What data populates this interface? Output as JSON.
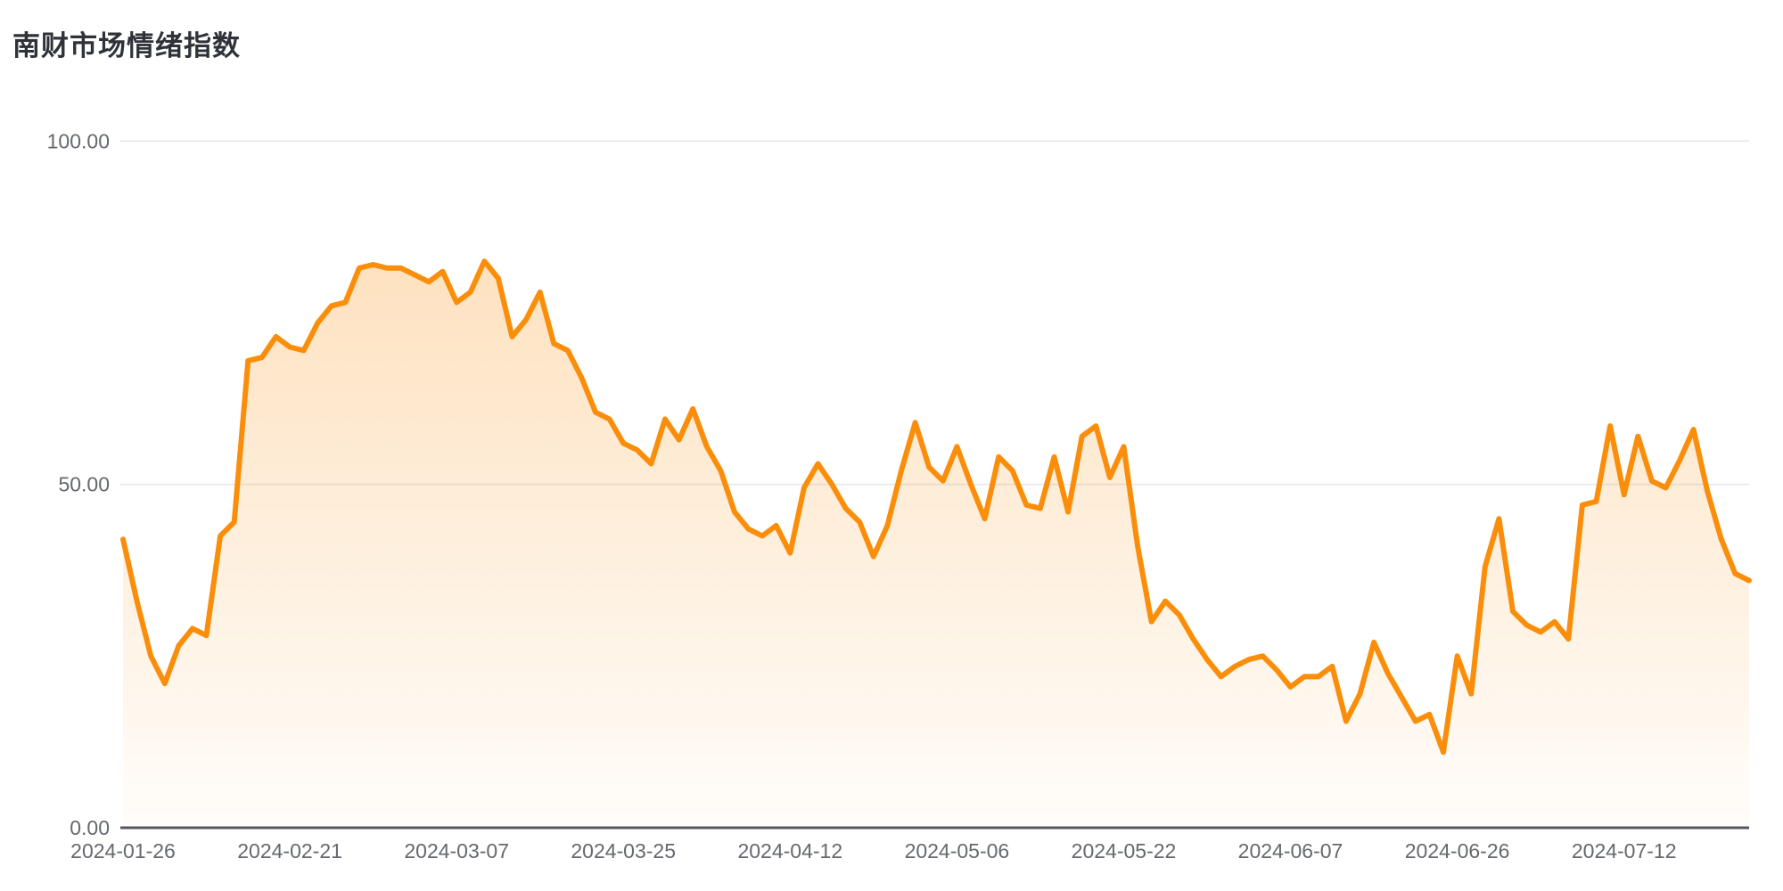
{
  "title": "南财市场情绪指数",
  "chart_data": {
    "type": "area",
    "title": "南财市场情绪指数",
    "xlabel": "",
    "ylabel": "",
    "ylim": [
      0,
      100
    ],
    "grid": {
      "horizontal": true,
      "vertical": false
    },
    "legend": "none",
    "x_axis_type": "category-dates",
    "x_tick_labels": [
      "2024-01-26",
      "2024-02-21",
      "2024-03-07",
      "2024-03-25",
      "2024-04-12",
      "2024-05-06",
      "2024-05-22",
      "2024-06-07",
      "2024-06-26",
      "2024-07-12"
    ],
    "x_tick_every_n_points": 12,
    "y_tick_labels": [
      "0.00",
      "50.00",
      "100.00"
    ],
    "y_tick_values": [
      0,
      50,
      100
    ],
    "series": [
      {
        "name": "南财市场情绪指数",
        "values": [
          42,
          33,
          25,
          21,
          26.5,
          29,
          28,
          42.5,
          44.5,
          68,
          68.5,
          71.5,
          70,
          69.5,
          73.5,
          76,
          76.5,
          81.5,
          82,
          81.5,
          81.5,
          80.5,
          79.5,
          81,
          76.5,
          78,
          82.5,
          80,
          71.5,
          74,
          78,
          70.5,
          69.5,
          65.5,
          60.5,
          59.5,
          56,
          55,
          53,
          59.5,
          56.5,
          61,
          55.5,
          52,
          46,
          43.5,
          42.5,
          44,
          40,
          49.5,
          53,
          50,
          46.5,
          44.5,
          39.5,
          44,
          52,
          59,
          52.5,
          50.5,
          55.5,
          50,
          45,
          54,
          52,
          47,
          46.5,
          54,
          46,
          57,
          58.5,
          51,
          55.5,
          41,
          30,
          33,
          31,
          27.5,
          24.5,
          22,
          23.5,
          24.5,
          25,
          23,
          20.5,
          22,
          22,
          23.5,
          15.5,
          19.5,
          27,
          22.5,
          19,
          15.5,
          16.5,
          11,
          25,
          19.5,
          38,
          45,
          31.5,
          29.5,
          28.5,
          30,
          27.5,
          47,
          47.5,
          58.5,
          48.5,
          57,
          50.5,
          49.5,
          53.5,
          58,
          49,
          42,
          37,
          36
        ]
      }
    ],
    "colors": {
      "line": "#FA8E0B",
      "area_top": "rgba(250,142,11,0.26)",
      "area_bottom": "rgba(250,142,11,0.02)",
      "grid_line": "#E2E6EE",
      "axis_line": "#54575F",
      "tick_label": "#65686F",
      "title": "#2F3239",
      "background": "#FFFFFF"
    }
  }
}
